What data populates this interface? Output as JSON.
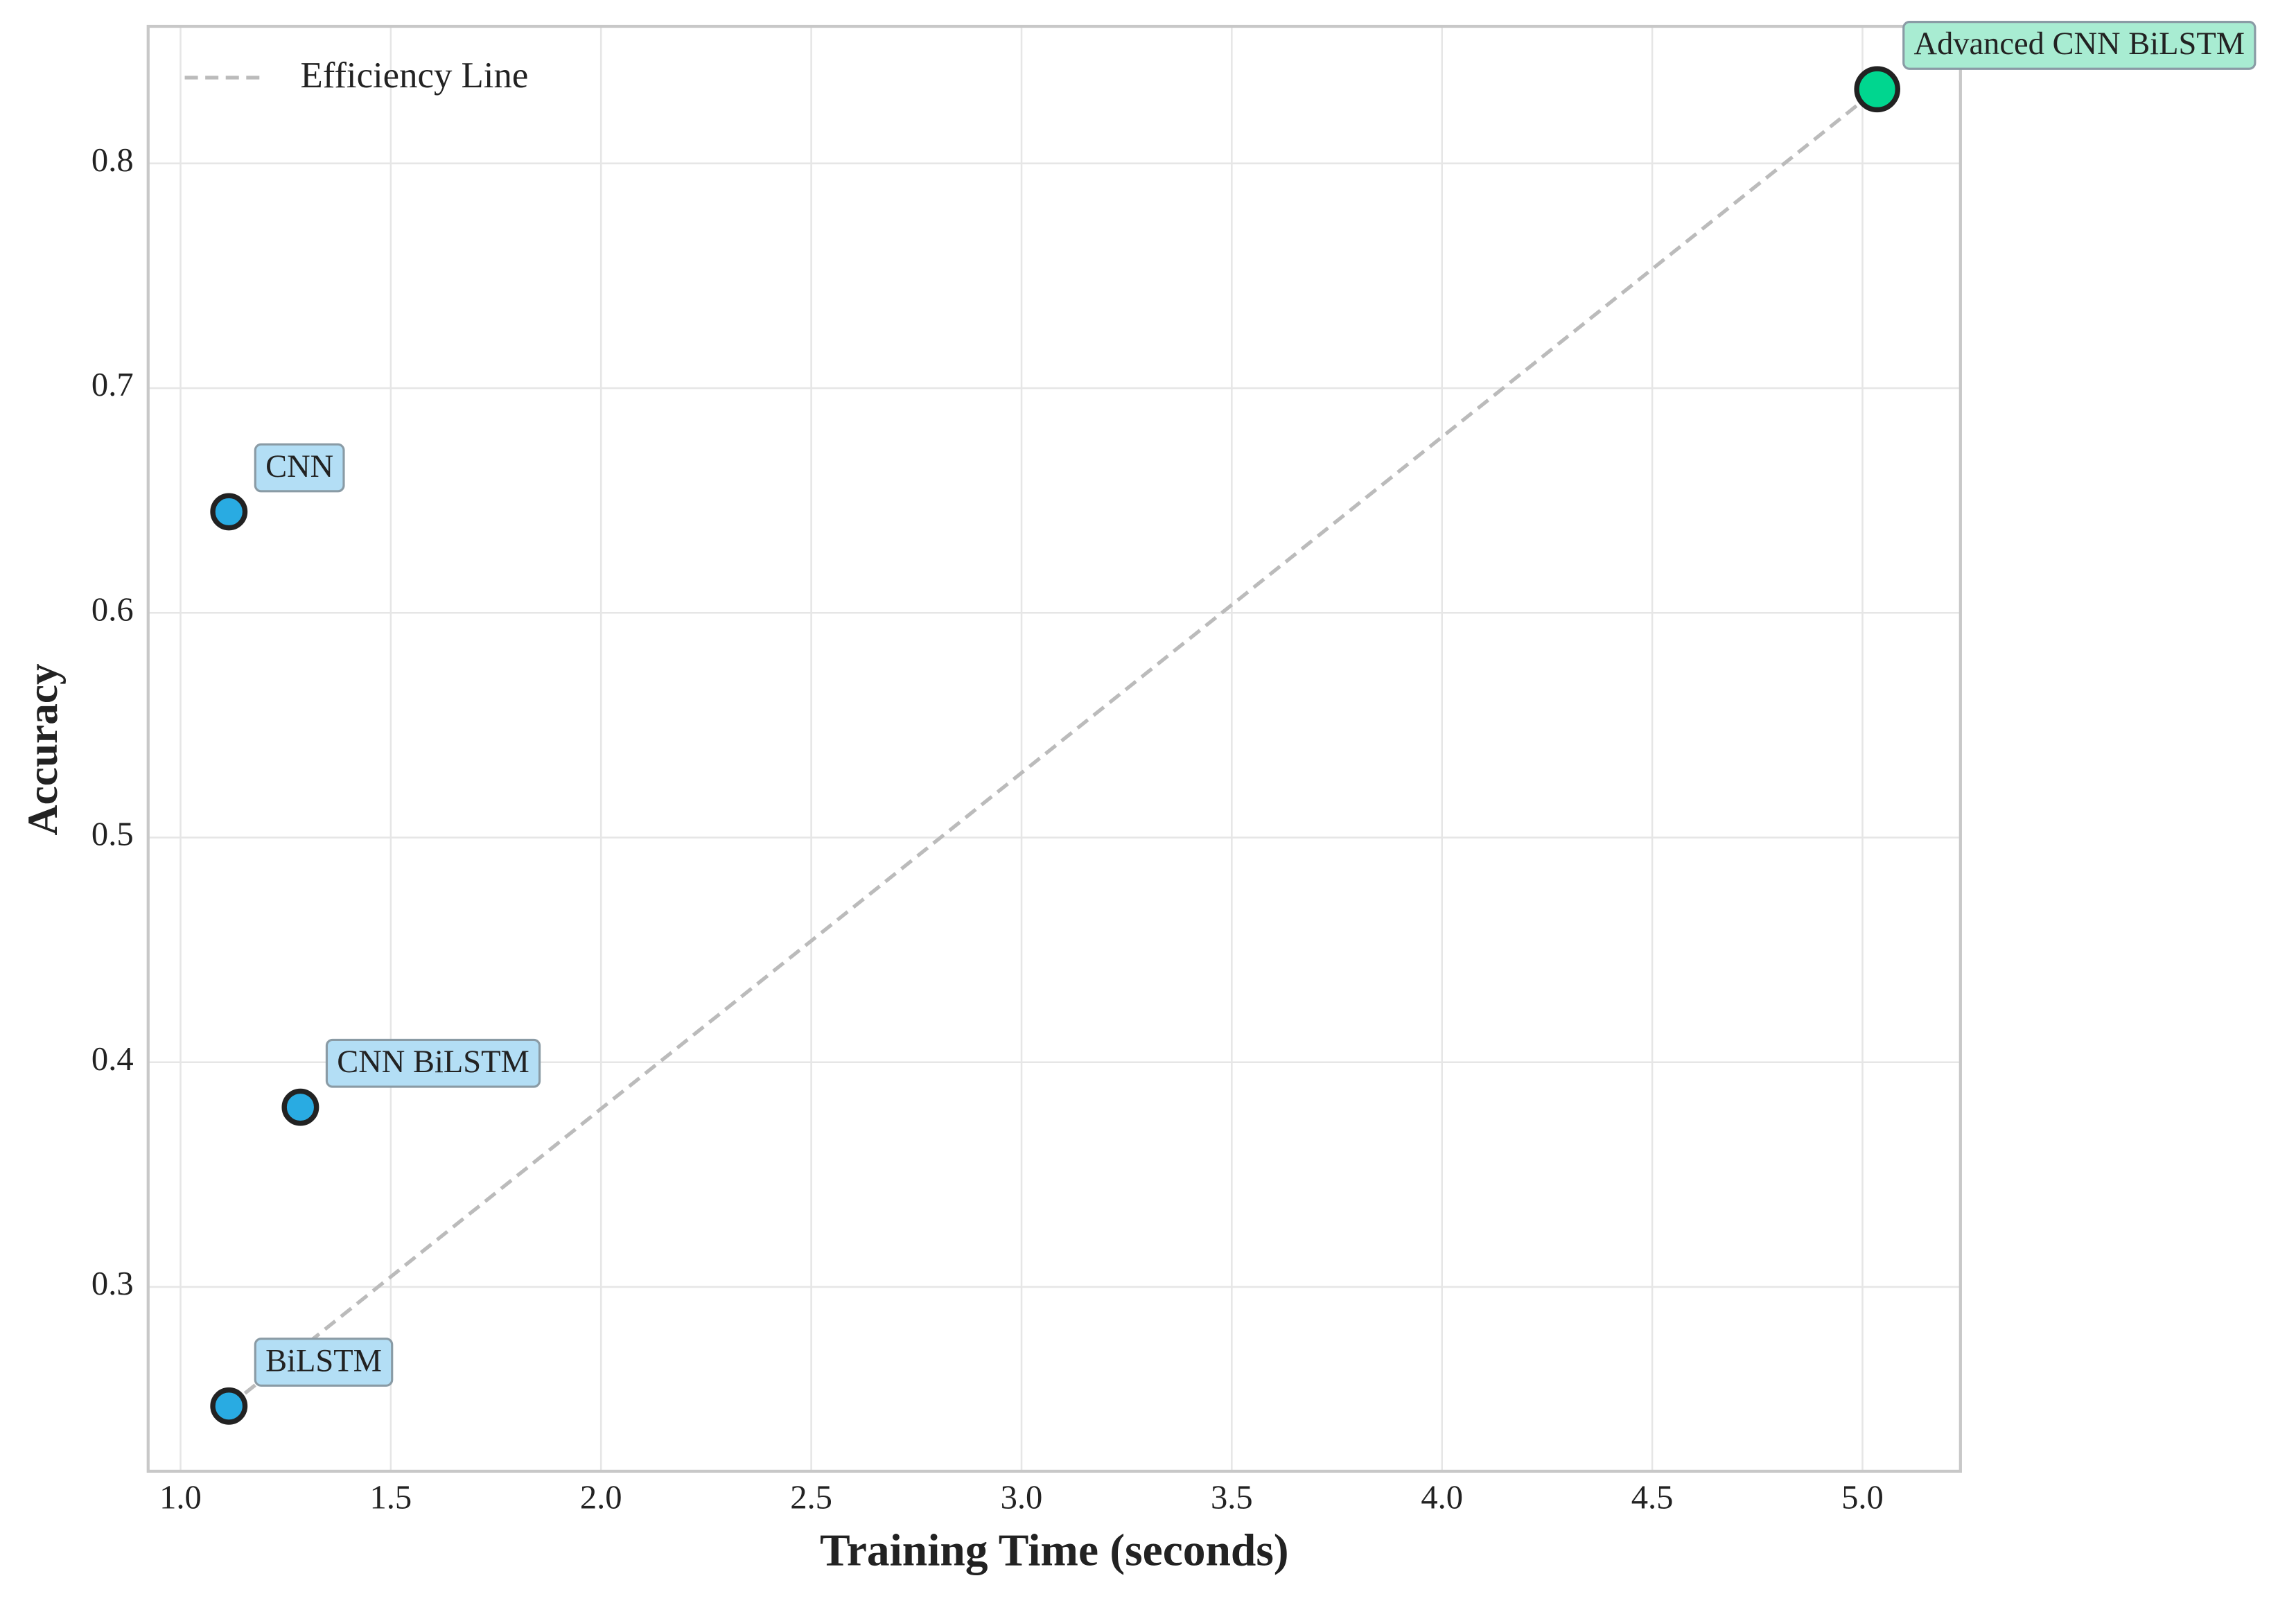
{
  "chart_data": {
    "type": "scatter",
    "xlabel": "Training Time (seconds)",
    "ylabel": "Accuracy",
    "xlim": [
      0.923,
      5.233
    ],
    "ylim": [
      0.218,
      0.861
    ],
    "xticks": [
      {
        "value": 1,
        "label": "1.0"
      },
      1.5,
      {
        "value": 2,
        "label": "2.0"
      },
      2.5,
      {
        "value": 3,
        "label": "3.0"
      },
      3.5,
      {
        "value": 4,
        "label": "4.0"
      },
      4.5,
      {
        "value": 5,
        "label": "5.0"
      }
    ],
    "yticks": [
      0.3,
      0.4,
      0.5,
      0.6,
      0.7,
      0.8
    ],
    "grid": true,
    "legend_position": "upper left",
    "points": [
      {
        "label": "CNN",
        "x": 1.115,
        "y": 0.645,
        "color": "#29abe2",
        "label_color": "#b3def5"
      },
      {
        "label": "CNN BiLSTM",
        "x": 1.285,
        "y": 0.38,
        "color": "#29abe2",
        "label_color": "#b3def5"
      },
      {
        "label": "BiLSTM",
        "x": 1.115,
        "y": 0.247,
        "color": "#29abe2",
        "label_color": "#b3def5"
      },
      {
        "label": "Advanced CNN BiLSTM",
        "x": 5.035,
        "y": 0.833,
        "color": "#00d68f",
        "label_color": "#a8ecd2"
      }
    ],
    "reference_line": {
      "name": "Efficiency Line",
      "x": [
        1.115,
        5.035
      ],
      "values": [
        0.247,
        0.833
      ],
      "color": "#bbbbbb"
    }
  }
}
